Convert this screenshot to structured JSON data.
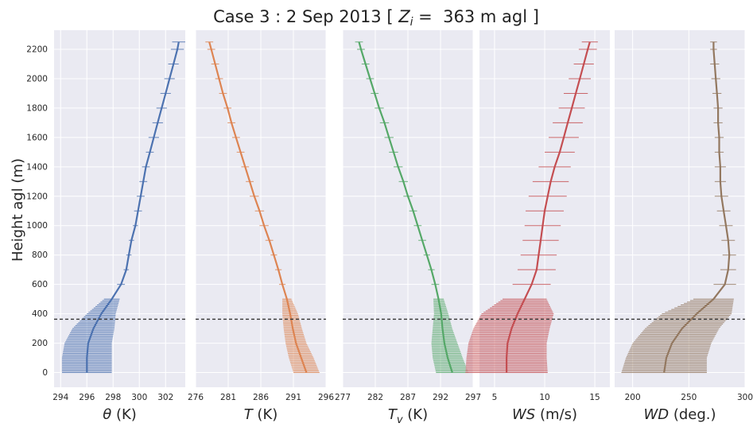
{
  "chart_data": {
    "type": "line",
    "title": {
      "prefix": "Case 3 : 2 Sep 2013 [ ",
      "zi_symbol": "Z",
      "zi_subscript": "i",
      "middle": " =  363 m agl ]"
    },
    "ylabel": "Height agl (m)",
    "ylim": [
      -100,
      2330
    ],
    "yticks": [
      0,
      200,
      400,
      600,
      800,
      1000,
      1200,
      1400,
      1600,
      1800,
      2000,
      2200
    ],
    "boundary_layer_height": 363,
    "grid": true,
    "background": "#eaeaf2",
    "panels": [
      {
        "key": "theta",
        "xlabel_symbol": "θ",
        "xlabel_sub": "",
        "xlabel_unit": " (K)",
        "xlim": [
          293.5,
          303.5
        ],
        "xticks": [
          294,
          296,
          298,
          300,
          302
        ],
        "color": "#4c72b0",
        "heights": [
          0,
          100,
          200,
          300,
          400,
          500,
          600,
          700,
          800,
          900,
          1000,
          1100,
          1200,
          1300,
          1400,
          1500,
          1600,
          1700,
          1800,
          1900,
          2000,
          2100,
          2200,
          2250
        ],
        "values": [
          296.0,
          296.0,
          296.1,
          296.5,
          297.1,
          297.9,
          298.6,
          299.0,
          299.2,
          299.4,
          299.7,
          299.9,
          300.1,
          300.3,
          300.5,
          300.8,
          301.1,
          301.4,
          301.7,
          302.0,
          302.3,
          302.6,
          302.9,
          303.0
        ],
        "err": [
          1.9,
          1.9,
          1.8,
          1.6,
          1.1,
          0.6,
          0.3,
          0.2,
          0.2,
          0.2,
          0.2,
          0.3,
          0.3,
          0.3,
          0.3,
          0.3,
          0.4,
          0.4,
          0.4,
          0.4,
          0.4,
          0.4,
          0.5,
          0.5
        ]
      },
      {
        "key": "temperature",
        "xlabel_symbol": "T",
        "xlabel_sub": "",
        "xlabel_unit": " (K)",
        "xlim": [
          276,
          296
        ],
        "xticks": [
          276,
          281,
          286,
          291,
          296
        ],
        "color": "#dd8452",
        "heights": [
          0,
          100,
          200,
          300,
          400,
          500,
          600,
          700,
          800,
          900,
          1000,
          1100,
          1200,
          1300,
          1400,
          1500,
          1600,
          1700,
          1800,
          1900,
          2000,
          2100,
          2200,
          2250
        ],
        "values": [
          293.0,
          292.2,
          291.4,
          290.9,
          290.5,
          290.0,
          289.3,
          288.7,
          288.0,
          287.3,
          286.5,
          285.8,
          285.0,
          284.3,
          283.6,
          282.9,
          282.2,
          281.5,
          280.9,
          280.2,
          279.6,
          279.0,
          278.4,
          278.1
        ],
        "err": [
          2.0,
          1.9,
          1.6,
          1.4,
          1.2,
          0.7,
          0.5,
          0.5,
          0.5,
          0.6,
          0.7,
          0.7,
          0.7,
          0.6,
          0.6,
          0.6,
          0.6,
          0.6,
          0.6,
          0.6,
          0.6,
          0.6,
          0.6,
          0.6
        ]
      },
      {
        "key": "virtual_temperature",
        "xlabel_symbol": "T",
        "xlabel_sub": "v",
        "xlabel_unit": " (K)",
        "xlim": [
          277,
          297
        ],
        "xticks": [
          277,
          282,
          287,
          292,
          297
        ],
        "color": "#55a868",
        "heights": [
          0,
          100,
          200,
          300,
          400,
          500,
          600,
          700,
          800,
          900,
          1000,
          1100,
          1200,
          1300,
          1400,
          1500,
          1600,
          1700,
          1800,
          1900,
          2000,
          2100,
          2200,
          2250
        ],
        "values": [
          293.8,
          293.1,
          292.6,
          292.3,
          292.1,
          291.7,
          291.2,
          290.6,
          289.9,
          289.2,
          288.5,
          287.8,
          287.0,
          286.3,
          285.5,
          284.8,
          284.1,
          283.4,
          282.6,
          281.9,
          281.2,
          280.5,
          279.8,
          279.5
        ],
        "err": [
          2.5,
          2.3,
          2.0,
          1.5,
          1.1,
          0.8,
          0.6,
          0.5,
          0.5,
          0.6,
          0.6,
          0.6,
          0.7,
          0.7,
          0.7,
          0.7,
          0.7,
          0.7,
          0.7,
          0.6,
          0.6,
          0.6,
          0.6,
          0.6
        ]
      },
      {
        "key": "wind_speed",
        "xlabel_symbol": "WS",
        "xlabel_sub": "",
        "xlabel_unit": " (m/s)",
        "xlim": [
          3.5,
          16.5
        ],
        "xticks": [
          5,
          10,
          15
        ],
        "color": "#c44e52",
        "heights": [
          0,
          100,
          200,
          300,
          400,
          500,
          600,
          700,
          800,
          900,
          1000,
          1100,
          1200,
          1300,
          1400,
          1500,
          1600,
          1700,
          1800,
          1900,
          2000,
          2100,
          2200,
          2250
        ],
        "values": [
          6.2,
          6.2,
          6.3,
          6.7,
          7.3,
          8.0,
          8.7,
          9.2,
          9.4,
          9.6,
          9.8,
          10.0,
          10.3,
          10.6,
          11.0,
          11.5,
          11.9,
          12.3,
          12.7,
          13.1,
          13.5,
          13.9,
          14.3,
          14.5
        ],
        "err": [
          4.1,
          4.0,
          3.9,
          3.8,
          3.6,
          2.2,
          1.9,
          1.9,
          1.8,
          1.8,
          1.8,
          1.9,
          1.9,
          1.8,
          1.6,
          1.5,
          1.5,
          1.5,
          1.3,
          1.2,
          1.1,
          1.0,
          0.9,
          0.8
        ]
      },
      {
        "key": "wind_direction",
        "xlabel_symbol": "WD",
        "xlabel_sub": "",
        "xlabel_unit": " (deg.)",
        "xlim": [
          184,
          300
        ],
        "xticks": [
          200,
          250,
          300
        ],
        "color": "#937860",
        "heights": [
          0,
          100,
          200,
          300,
          400,
          500,
          600,
          700,
          800,
          900,
          1000,
          1100,
          1200,
          1300,
          1400,
          1500,
          1600,
          1700,
          1800,
          1900,
          2000,
          2100,
          2200,
          2250
        ],
        "values": [
          228,
          230,
          235,
          244,
          257,
          272,
          282,
          285,
          286,
          285,
          283,
          281,
          279,
          278,
          278,
          277,
          277,
          276,
          276,
          275,
          274,
          273,
          272,
          272
        ],
        "err": [
          38,
          36,
          35,
          33,
          31,
          18,
          10,
          7,
          6,
          6,
          6,
          6,
          6,
          5,
          5,
          4,
          4,
          4,
          4,
          4,
          4,
          4,
          3,
          3
        ]
      }
    ]
  }
}
